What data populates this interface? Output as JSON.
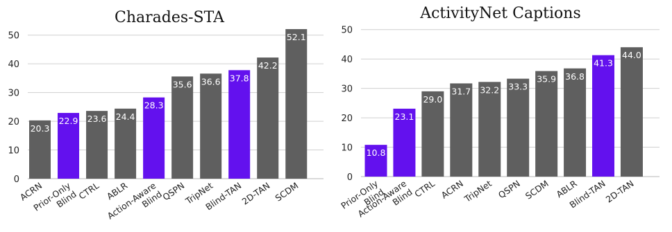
{
  "chart_data": [
    {
      "type": "bar",
      "title": "Charades-STA",
      "xlabel": "",
      "ylabel": "",
      "ylim": [
        0,
        55
      ],
      "yticks": [
        0,
        10,
        20,
        30,
        40,
        50
      ],
      "grid": true,
      "categories": [
        "ACRN",
        "Prior-Only\nBlind",
        "CTRL",
        "ABLR",
        "Action-Aware\nBlind",
        "QSPN",
        "TripNet",
        "Blind-TAN",
        "2D-TAN",
        "SCDM"
      ],
      "values": [
        20.3,
        22.9,
        23.6,
        24.4,
        28.3,
        35.6,
        36.6,
        37.8,
        42.2,
        52.1
      ],
      "value_labels": [
        "20.3",
        "22.9",
        "23.6",
        "24.4",
        "28.3",
        "35.6",
        "36.6",
        "37.8",
        "42.2",
        "52.1"
      ],
      "highlighted": [
        false,
        true,
        false,
        false,
        true,
        false,
        false,
        true,
        false,
        false
      ]
    },
    {
      "type": "bar",
      "title": "ActivityNet Captions",
      "xlabel": "",
      "ylabel": "",
      "ylim": [
        0,
        53
      ],
      "yticks": [
        0,
        10,
        20,
        30,
        40,
        50
      ],
      "grid": true,
      "categories": [
        "Prior-Only\nBlind",
        "Action-Aware\nBlind",
        "CTRL",
        "ACRN",
        "TripNet",
        "QSPN",
        "SCDM",
        "ABLR",
        "Blind-TAN",
        "2D-TAN"
      ],
      "values": [
        10.8,
        23.1,
        29.0,
        31.7,
        32.2,
        33.3,
        35.9,
        36.8,
        41.3,
        44.0
      ],
      "value_labels": [
        "10.8",
        "23.1",
        "29.0",
        "31.7",
        "32.2",
        "33.3",
        "35.9",
        "36.8",
        "41.3",
        "44.0"
      ],
      "highlighted": [
        true,
        true,
        false,
        false,
        false,
        false,
        false,
        false,
        true,
        false
      ]
    }
  ],
  "colors": {
    "default_bar": "#5f5f5f",
    "highlight_bar": "#6311ee",
    "grid": "#cfcfcf",
    "value_text": "#ffffff"
  }
}
